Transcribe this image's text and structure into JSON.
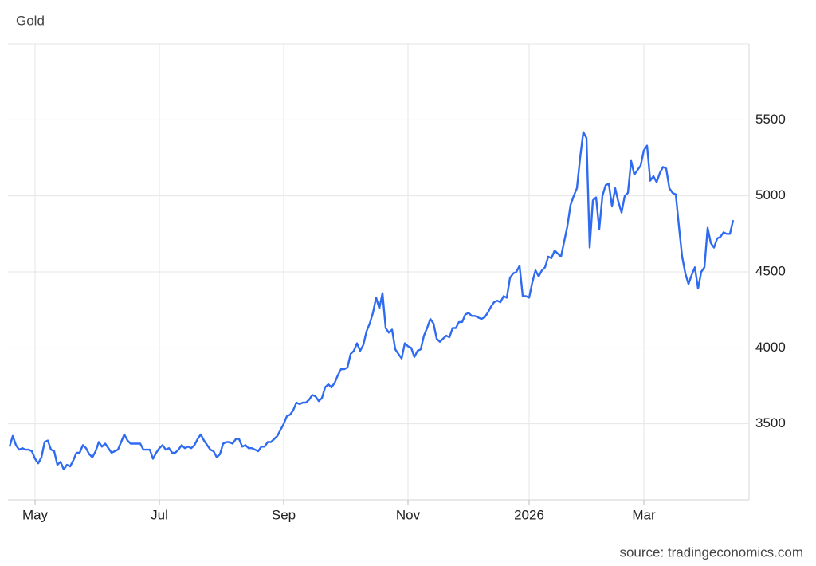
{
  "chart_data": {
    "type": "line",
    "title": "Gold",
    "source": "source: tradingeconomics.com",
    "categories": [
      null,
      null,
      null,
      null,
      null,
      null,
      null,
      null,
      "May",
      null,
      null,
      null,
      null,
      null,
      null,
      null,
      null,
      null,
      null,
      null,
      null,
      null,
      null,
      null,
      null,
      null,
      null,
      null,
      null,
      null,
      null,
      null,
      null,
      null,
      null,
      null,
      null,
      null,
      null,
      null,
      null,
      null,
      null,
      null,
      null,
      null,
      null,
      "Jul",
      null,
      null,
      null,
      null,
      null,
      null,
      null,
      null,
      null,
      null,
      null,
      null,
      null,
      null,
      null,
      null,
      null,
      null,
      null,
      null,
      null,
      null,
      null,
      null,
      null,
      null,
      null,
      null,
      null,
      null,
      null,
      null,
      null,
      null,
      null,
      null,
      null,
      null,
      "Sep",
      null,
      null,
      null,
      null,
      null,
      null,
      null,
      null,
      null,
      null,
      null,
      null,
      null,
      null,
      null,
      null,
      null,
      null,
      null,
      null,
      null,
      null,
      null,
      null,
      null,
      null,
      null,
      null,
      null,
      null,
      null,
      null,
      null,
      null,
      null,
      null,
      null,
      null,
      "Nov",
      null,
      null,
      null,
      null,
      null,
      null,
      null,
      null,
      null,
      null,
      null,
      null,
      null,
      null,
      null,
      null,
      null,
      null,
      null,
      null,
      null,
      null,
      null,
      null,
      null,
      null,
      null,
      null,
      null,
      null,
      null,
      null,
      null,
      null,
      null,
      null,
      null,
      "2026",
      null,
      null,
      null,
      null,
      null,
      null,
      null,
      null,
      null,
      null,
      null,
      null,
      null,
      null,
      null,
      null,
      null,
      null,
      null,
      null,
      null,
      null,
      null,
      null,
      null,
      null,
      null,
      null,
      null,
      null,
      null,
      null,
      null,
      null,
      null,
      "Mar",
      null,
      null,
      null,
      null,
      null,
      null,
      null,
      null,
      null,
      null,
      null,
      null,
      null,
      null,
      null,
      null,
      null,
      null,
      null,
      null,
      null,
      null,
      null,
      null,
      null,
      null,
      null,
      null
    ],
    "series": [
      {
        "name": "Gold",
        "color": "#2f6bf0",
        "values": [
          3350,
          3420,
          3360,
          3330,
          3340,
          3330,
          3330,
          3320,
          3270,
          3240,
          3280,
          3380,
          3390,
          3330,
          3320,
          3230,
          3250,
          3200,
          3230,
          3220,
          3260,
          3310,
          3310,
          3360,
          3340,
          3300,
          3280,
          3320,
          3380,
          3350,
          3370,
          3340,
          3310,
          3320,
          3330,
          3380,
          3430,
          3390,
          3370,
          3370,
          3370,
          3370,
          3330,
          3330,
          3330,
          3270,
          3310,
          3340,
          3360,
          3330,
          3340,
          3310,
          3310,
          3330,
          3360,
          3340,
          3350,
          3340,
          3360,
          3400,
          3430,
          3390,
          3360,
          3330,
          3320,
          3280,
          3300,
          3370,
          3380,
          3380,
          3370,
          3400,
          3400,
          3350,
          3360,
          3340,
          3340,
          3330,
          3320,
          3350,
          3350,
          3380,
          3380,
          3400,
          3420,
          3460,
          3500,
          3550,
          3560,
          3590,
          3640,
          3630,
          3640,
          3640,
          3660,
          3690,
          3680,
          3650,
          3670,
          3740,
          3760,
          3740,
          3770,
          3820,
          3860,
          3860,
          3870,
          3960,
          3980,
          4030,
          3980,
          4020,
          4110,
          4160,
          4230,
          4330,
          4260,
          4360,
          4130,
          4100,
          4120,
          3990,
          3960,
          3930,
          4030,
          4010,
          4000,
          3940,
          3980,
          3990,
          4080,
          4130,
          4190,
          4160,
          4060,
          4040,
          4060,
          4080,
          4070,
          4130,
          4130,
          4170,
          4170,
          4220,
          4230,
          4210,
          4210,
          4200,
          4190,
          4200,
          4230,
          4270,
          4300,
          4310,
          4300,
          4340,
          4330,
          4460,
          4490,
          4500,
          4540,
          4340,
          4340,
          4330,
          4430,
          4510,
          4470,
          4510,
          4530,
          4600,
          4590,
          4640,
          4620,
          4600,
          4700,
          4800,
          4940,
          5000,
          5050,
          5250,
          5420,
          5380,
          4660,
          4970,
          4990,
          4780,
          5000,
          5070,
          5080,
          4930,
          5050,
          4960,
          4890,
          5000,
          5020,
          5230,
          5140,
          5170,
          5200,
          5300,
          5330,
          5100,
          5130,
          5090,
          5150,
          5190,
          5180,
          5050,
          5020,
          5010,
          4800,
          4600,
          4490,
          4420,
          4480,
          4530,
          4390,
          4500,
          4530,
          4790,
          4690,
          4660,
          4720,
          4730,
          4760,
          4750,
          4750,
          4840
        ]
      }
    ],
    "ylim": [
      3000,
      6000
    ],
    "yticks": [
      3500,
      4000,
      4500,
      5000,
      5500
    ],
    "grid": true
  }
}
